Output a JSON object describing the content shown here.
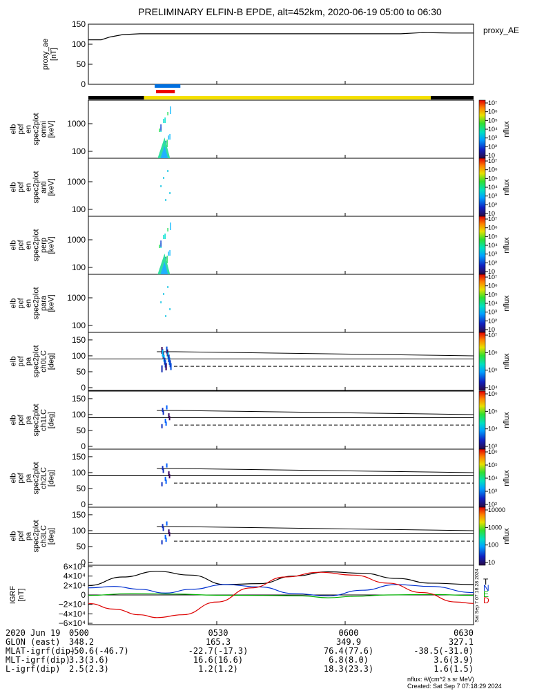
{
  "title": "PRELIMINARY ELFIN-B EPDE, alt=452km, 2020-06-19 05:00 to 06:30",
  "time_axis": {
    "start_min": 0,
    "end_min": 90,
    "ticks": [
      {
        "t": 0,
        "label": "0500"
      },
      {
        "t": 30,
        "label": "0530"
      },
      {
        "t": 60,
        "label": "0600"
      },
      {
        "t": 90,
        "label": "0630"
      }
    ]
  },
  "proxy_ae": {
    "ylabel": "proxy_ae\n[nT]",
    "legend": "proxy_AE",
    "ylim": [
      0,
      150
    ],
    "yticks": [
      "0",
      "50",
      "100",
      "150"
    ]
  },
  "science_bars": {
    "blue": {
      "start": 15.5,
      "end": 21.5,
      "color": "#0070e0"
    },
    "red": {
      "start": 15.8,
      "end": 20.2,
      "color": "#ee0000"
    },
    "status": [
      {
        "start": 0,
        "end": 13,
        "color": "#000000"
      },
      {
        "start": 13,
        "end": 80,
        "color": "#f5e000"
      },
      {
        "start": 80,
        "end": 90,
        "color": "#000000"
      }
    ]
  },
  "spec_panels": [
    {
      "ylabel": "elb\npef\nen\nspec2plot\nomni\n[keV]",
      "yticks": [
        "100",
        "1000"
      ],
      "colorbar": {
        "label": "nflux",
        "ticks": [
          "10",
          "10²",
          "10³",
          "10⁴",
          "10⁵",
          "10⁶",
          "10⁷"
        ]
      }
    },
    {
      "ylabel": "elb\npef\nen\nspec2plot\nanti\n[keV]",
      "yticks": [
        "100",
        "1000"
      ],
      "colorbar": {
        "label": "nflux",
        "ticks": [
          "10",
          "10²",
          "10³",
          "10⁴",
          "10⁵",
          "10⁶",
          "10⁷"
        ]
      }
    },
    {
      "ylabel": "elb\npef\nen\nspec2plot\nperp\n[keV]",
      "yticks": [
        "100",
        "1000"
      ],
      "colorbar": {
        "label": "nflux",
        "ticks": [
          "10",
          "10²",
          "10³",
          "10⁴",
          "10⁵",
          "10⁶",
          "10⁷"
        ]
      }
    },
    {
      "ylabel": "elb\npef\nen\nspec2plot\npara\n[keV]",
      "yticks": [
        "100",
        "1000"
      ],
      "colorbar": {
        "label": "nflux",
        "ticks": [
          "10",
          "10²",
          "10³",
          "10⁴",
          "10⁵",
          "10⁶",
          "10⁷"
        ]
      }
    }
  ],
  "pa_panels": [
    {
      "ylabel": "elb\npef\npa\nspec2plot\nch0LC\n[deg]",
      "yticks": [
        "0",
        "50",
        "100",
        "150"
      ],
      "colorbar": {
        "label": "nflux",
        "ticks": [
          "10⁴",
          "10⁵",
          "10⁶",
          "10⁷"
        ]
      }
    },
    {
      "ylabel": "elb\npef\npa\nspec2plot\nch1LC\n[deg]",
      "yticks": [
        "0",
        "50",
        "100",
        "150"
      ],
      "colorbar": {
        "label": "nflux",
        "ticks": [
          "10³",
          "10⁴",
          "10⁵",
          "10⁶"
        ]
      }
    },
    {
      "ylabel": "elb\npef\npa\nspec2plot\nch2LC\n[deg]",
      "yticks": [
        "0",
        "50",
        "100",
        "150"
      ],
      "colorbar": {
        "label": "nflux",
        "ticks": [
          "10²",
          "10³",
          "10⁴",
          "10⁵",
          "10⁶"
        ]
      }
    },
    {
      "ylabel": "elb\npef\npa\nspec2plot\nch3LC\n[deg]",
      "yticks": [
        "0",
        "50",
        "100",
        "150"
      ],
      "colorbar": {
        "label": "nflux",
        "ticks": [
          "10",
          "100",
          "1000",
          "10000"
        ]
      }
    }
  ],
  "igrf": {
    "ylabel": "IGRF\n[nT]",
    "yticks": [
      "−6×10⁴",
      "−4×10⁴",
      "−2×10⁴",
      "0",
      "2×10⁴",
      "4×10⁴",
      "6×10⁴"
    ],
    "legend": [
      {
        "label": "T",
        "color": "#000000"
      },
      {
        "label": "N",
        "color": "#0030d0"
      },
      {
        "label": "E",
        "color": "#00b000"
      },
      {
        "label": "D",
        "color": "#dd0000"
      }
    ],
    "side_stamp": "Sat Sep  7 07:18:28 2024"
  },
  "orbit_table": {
    "rows": [
      {
        "label": "2020 Jun 19",
        "values": [
          "0500",
          "0530",
          "0600",
          "0630"
        ]
      },
      {
        "label": "GLON (east)",
        "values": [
          "348.2",
          "165.3",
          "349.9",
          "327.1"
        ]
      },
      {
        "label": "MLAT-igrf(dip)",
        "values": [
          "-50.6(-46.7)",
          "-22.7(-17.3)",
          "76.4(77.6)",
          "-38.5(-31.0)"
        ]
      },
      {
        "label": "MLT-igrf(dip)",
        "values": [
          "3.3(3.6)",
          "16.6(16.6)",
          "6.8(8.0)",
          "3.6(3.9)"
        ]
      },
      {
        "label": "L-igrf(dip)",
        "values": [
          "2.5(2.3)",
          "1.2(1.2)",
          "18.3(23.3)",
          "1.6(1.5)"
        ]
      }
    ]
  },
  "footer": {
    "units": "nflux: #/(cm^2 s sr MeV)",
    "created": "Created: Sat Sep  7 07:18:29 2024"
  },
  "chart_data": {
    "type": "line",
    "title": "PRELIMINARY ELFIN-B EPDE, alt=452km, 2020-06-19 05:00 to 06:30",
    "x_unit": "minutes after 05:00 UT",
    "proxy_ae": {
      "x": [
        0,
        3,
        5,
        8,
        12,
        20,
        30,
        40,
        50,
        60,
        70,
        73,
        78,
        85,
        90
      ],
      "y": [
        111,
        111,
        118,
        124,
        126,
        126,
        126,
        126,
        126,
        126,
        126,
        126,
        129,
        128,
        128
      ]
    },
    "igrf_series": [
      {
        "name": "T",
        "color": "#000000",
        "x": [
          0,
          8,
          16,
          24,
          32,
          40,
          48,
          56,
          64,
          72,
          80,
          90
        ],
        "y": [
          20000,
          38000,
          50000,
          42000,
          22000,
          24000,
          40000,
          49000,
          46000,
          35000,
          25000,
          22000
        ]
      },
      {
        "name": "N",
        "color": "#0030d0",
        "x": [
          0,
          6,
          12,
          18,
          24,
          32,
          40,
          48,
          56,
          64,
          72,
          80,
          90
        ],
        "y": [
          15000,
          18000,
          12000,
          4000,
          12000,
          22000,
          17000,
          3000,
          -2000,
          10000,
          22000,
          18000,
          5000
        ]
      },
      {
        "name": "E",
        "color": "#00b000",
        "x": [
          0,
          10,
          20,
          30,
          40,
          50,
          56,
          62,
          70,
          80,
          90
        ],
        "y": [
          -1000,
          3000,
          2000,
          -500,
          -1000,
          -2000,
          -6000,
          -3000,
          0,
          1000,
          -1000
        ]
      },
      {
        "name": "D",
        "color": "#dd0000",
        "x": [
          0,
          6,
          12,
          16,
          22,
          30,
          38,
          46,
          54,
          62,
          70,
          78,
          86,
          90
        ],
        "y": [
          -18000,
          -30000,
          -42000,
          -48000,
          -42000,
          -15000,
          15000,
          38000,
          48000,
          42000,
          25000,
          5000,
          -15000,
          -18000
        ]
      }
    ],
    "ylim_igrf": [
      -60000,
      60000
    ]
  }
}
